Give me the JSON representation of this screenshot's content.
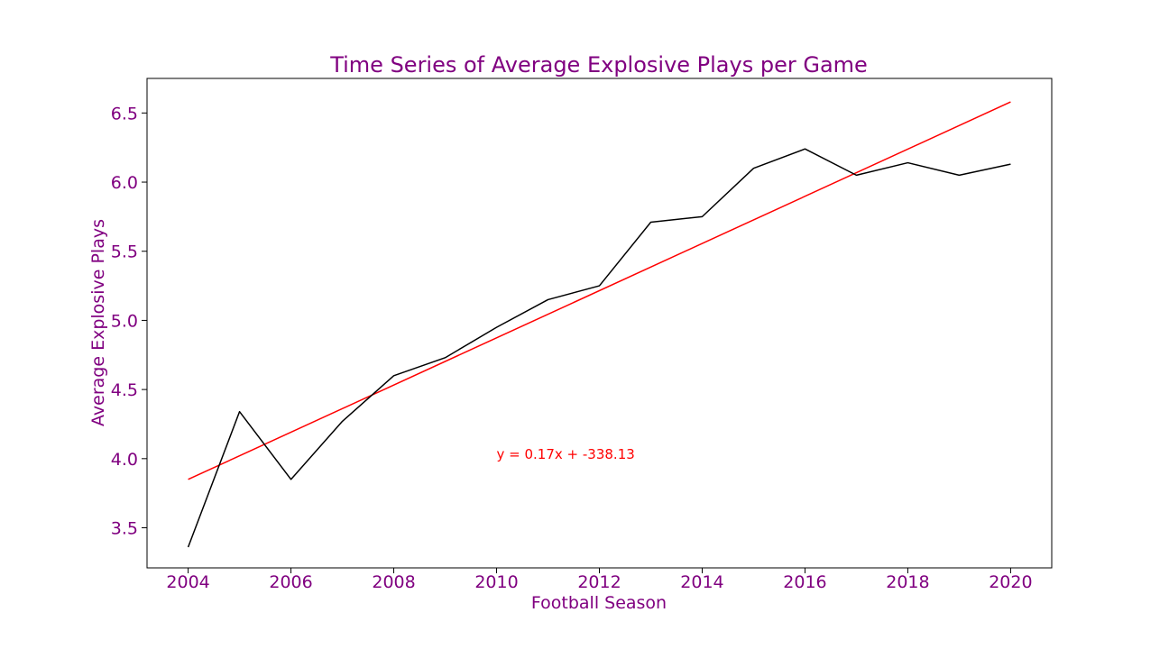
{
  "chart_data": {
    "type": "line",
    "title": "Time Series of Average Explosive Plays per Game",
    "xlabel": "Football Season",
    "ylabel": "Average Explosive Plays",
    "xlim": [
      2003.2,
      2020.8
    ],
    "ylim": [
      3.21,
      6.75
    ],
    "xticks": [
      2004,
      2006,
      2008,
      2010,
      2012,
      2014,
      2016,
      2018,
      2020
    ],
    "yticks": [
      3.5,
      4.0,
      4.5,
      5.0,
      5.5,
      6.0,
      6.5
    ],
    "ytick_labels": [
      "3.5",
      "4.0",
      "4.5",
      "5.0",
      "5.5",
      "6.0",
      "6.5"
    ],
    "grid": false,
    "colors": {
      "text": "#800080",
      "series": "#000000",
      "regression": "#ff0000",
      "axes": "#000000"
    },
    "series": [
      {
        "x": [
          2004,
          2005,
          2006,
          2007,
          2008,
          2009,
          2010,
          2011,
          2012,
          2013,
          2014,
          2015,
          2016,
          2017,
          2018,
          2019,
          2020
        ],
        "values": [
          3.36,
          4.34,
          3.85,
          4.27,
          4.6,
          4.73,
          4.95,
          5.15,
          5.25,
          5.71,
          5.75,
          6.1,
          6.24,
          6.05,
          6.14,
          6.05,
          6.13
        ]
      }
    ],
    "regression": {
      "slope": 0.17,
      "intercept": -338.13,
      "x_range": [
        2004,
        2020
      ],
      "y_range": [
        3.85,
        6.58
      ],
      "equation_label": "y = 0.17x + -338.13",
      "label_anchor": [
        2010,
        4.0
      ]
    }
  }
}
